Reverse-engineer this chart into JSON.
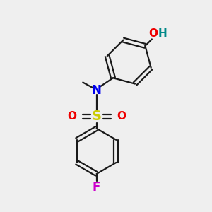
{
  "background_color": "#efefef",
  "bond_color": "#1a1a1a",
  "atom_colors": {
    "N": "#0000ee",
    "O": "#ee0000",
    "S": "#cccc00",
    "F": "#cc00cc",
    "H": "#008888",
    "C": "#1a1a1a"
  },
  "figsize": [
    3.0,
    3.0
  ],
  "dpi": 100,
  "lw": 1.6
}
